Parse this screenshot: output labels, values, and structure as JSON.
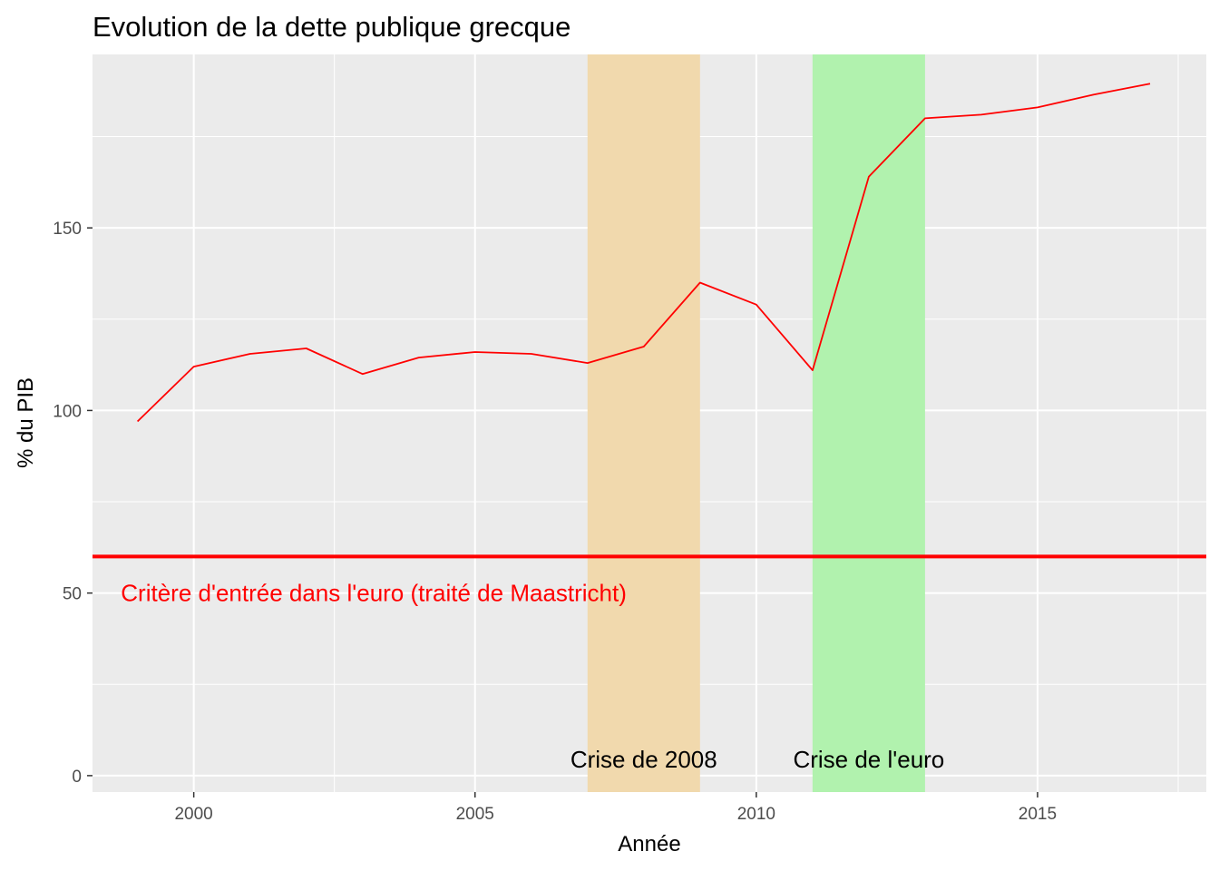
{
  "chart_data": {
    "type": "line",
    "title": "Evolution de la dette publique grecque",
    "xlabel": "Année",
    "ylabel": "% du PIB",
    "xlim": [
      1998.2,
      2018.0
    ],
    "ylim": [
      -4.5,
      197.5
    ],
    "x_ticks": [
      2000,
      2005,
      2010,
      2015
    ],
    "x_tick_labels": [
      "2000",
      "2005",
      "2010",
      "2015"
    ],
    "y_ticks": [
      0,
      50,
      100,
      150
    ],
    "y_tick_labels": [
      "0",
      "50",
      "100",
      "150"
    ],
    "grid": true,
    "series": [
      {
        "color": "#ff0000",
        "x": [
          1999,
          2000,
          2001,
          2002,
          2003,
          2004,
          2005,
          2006,
          2007,
          2008,
          2009,
          2010,
          2011,
          2012,
          2013,
          2014,
          2015,
          2016,
          2017
        ],
        "y": [
          97,
          112,
          115.5,
          117,
          110,
          114.5,
          116,
          115.5,
          113,
          117.5,
          135,
          129,
          111,
          164,
          180,
          181,
          183,
          186.5,
          189.5
        ]
      }
    ],
    "shaded_regions": [
      {
        "x_start": 2007,
        "x_end": 2009,
        "color": "#f1d9ad",
        "label": "Crise de 2008"
      },
      {
        "x_start": 2011,
        "x_end": 2013,
        "color": "#b1f2ae",
        "label": "Crise de l'euro"
      }
    ],
    "hline": {
      "y": 60,
      "color": "#ff0000",
      "label": "Critère d'entrée dans l'euro (traité de Maastricht)"
    },
    "colors": {
      "panel_background": "#ebebeb",
      "grid": "#ffffff",
      "tick_text": "#4d4d4d"
    }
  }
}
